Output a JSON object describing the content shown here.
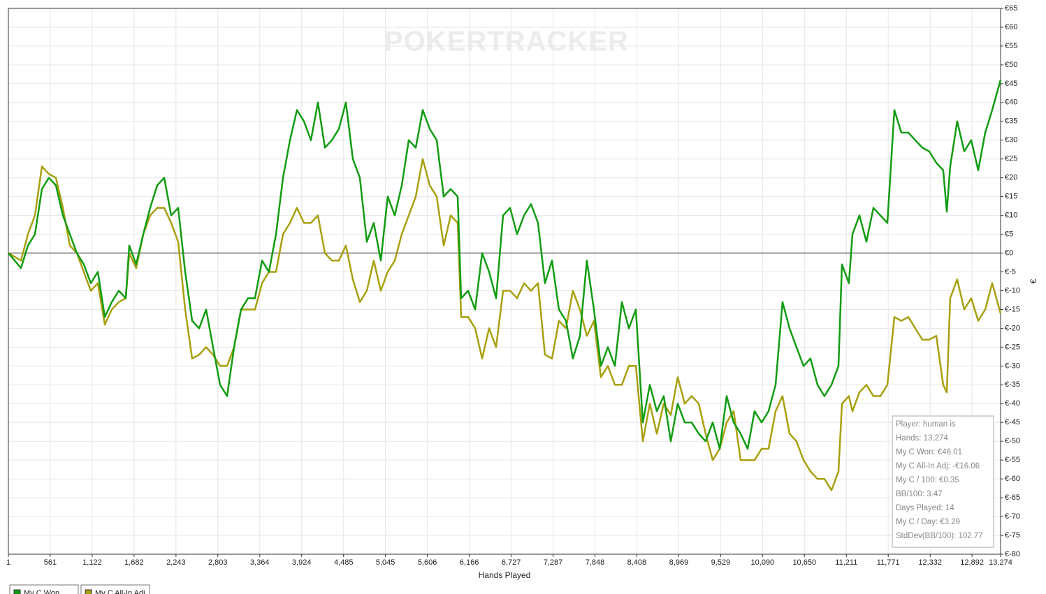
{
  "chart_data": {
    "type": "line",
    "watermark": "POKERTRACKER",
    "x_label": "Hands Played",
    "y_label": "€",
    "grid": true,
    "legend": "bottom-left",
    "xlim": [
      1,
      13274
    ],
    "ylim": [
      -80,
      65
    ],
    "xticks": [
      1,
      {
        "value": 561,
        "label": "561"
      },
      {
        "value": 1122,
        "label": "1,122"
      },
      {
        "value": 1682,
        "label": "1,682"
      },
      {
        "value": 2243,
        "label": "2,243"
      },
      {
        "value": 2803,
        "label": "2,803"
      },
      {
        "value": 3364,
        "label": "3,364"
      },
      {
        "value": 3924,
        "label": "3,924"
      },
      {
        "value": 4485,
        "label": "4,485"
      },
      {
        "value": 5045,
        "label": "5,045"
      },
      {
        "value": 5606,
        "label": "5,606"
      },
      {
        "value": 6166,
        "label": "6,166"
      },
      {
        "value": 6727,
        "label": "6,727"
      },
      {
        "value": 7287,
        "label": "7,287"
      },
      {
        "value": 7848,
        "label": "7,848"
      },
      {
        "value": 8408,
        "label": "8,408"
      },
      {
        "value": 8969,
        "label": "8,969"
      },
      {
        "value": 9529,
        "label": "9,529"
      },
      {
        "value": 10090,
        "label": "10,090"
      },
      {
        "value": 10650,
        "label": "10,650"
      },
      {
        "value": 11211,
        "label": "11,211"
      },
      {
        "value": 11771,
        "label": "11,771"
      },
      {
        "value": 12332,
        "label": "12,332"
      },
      {
        "value": 12892,
        "label": "12,892"
      },
      {
        "value": 13274,
        "label": "13,274"
      }
    ],
    "yticks": [
      {
        "value": 65,
        "label": "€65"
      },
      {
        "value": 60,
        "label": "€60"
      },
      {
        "value": 55,
        "label": "€55"
      },
      {
        "value": 50,
        "label": "€50"
      },
      {
        "value": 45,
        "label": "€45"
      },
      {
        "value": 40,
        "label": "€40"
      },
      {
        "value": 35,
        "label": "€35"
      },
      {
        "value": 30,
        "label": "€30"
      },
      {
        "value": 25,
        "label": "€25"
      },
      {
        "value": 20,
        "label": "€20"
      },
      {
        "value": 15,
        "label": "€15"
      },
      {
        "value": 10,
        "label": "€10"
      },
      {
        "value": 5,
        "label": "€5"
      },
      {
        "value": 0,
        "label": "€0"
      },
      {
        "value": -5,
        "label": "€-5"
      },
      {
        "value": -10,
        "label": "€-10"
      },
      {
        "value": -15,
        "label": "€-15"
      },
      {
        "value": -20,
        "label": "€-20"
      },
      {
        "value": -25,
        "label": "€-25"
      },
      {
        "value": -30,
        "label": "€-30"
      },
      {
        "value": -35,
        "label": "€-35"
      },
      {
        "value": -40,
        "label": "€-40"
      },
      {
        "value": -45,
        "label": "€-45"
      },
      {
        "value": -50,
        "label": "€-50"
      },
      {
        "value": -55,
        "label": "€-55"
      },
      {
        "value": -60,
        "label": "€-60"
      },
      {
        "value": -65,
        "label": "€-65"
      },
      {
        "value": -70,
        "label": "€-70"
      },
      {
        "value": -75,
        "label": "€-75"
      },
      {
        "value": -80,
        "label": "€-80"
      }
    ],
    "x": [
      1,
      169,
      263,
      356,
      450,
      543,
      637,
      730,
      824,
      917,
      1010,
      1104,
      1197,
      1291,
      1384,
      1478,
      1571,
      1618,
      1711,
      1805,
      1898,
      1992,
      2085,
      2179,
      2272,
      2366,
      2459,
      2553,
      2646,
      2739,
      2833,
      2927,
      3020,
      3114,
      3207,
      3300,
      3394,
      3487,
      3581,
      3674,
      3768,
      3861,
      3955,
      4048,
      4142,
      4235,
      4329,
      4422,
      4516,
      4609,
      4703,
      4796,
      4889,
      4983,
      5076,
      5170,
      5263,
      5357,
      5450,
      5544,
      5637,
      5731,
      5824,
      5918,
      6011,
      6058,
      6151,
      6245,
      6338,
      6432,
      6525,
      6619,
      6712,
      6806,
      6899,
      6993,
      7086,
      7179,
      7273,
      7366,
      7460,
      7553,
      7647,
      7740,
      7834,
      7927,
      8021,
      8114,
      8208,
      8301,
      8395,
      8488,
      8582,
      8675,
      8768,
      8862,
      8955,
      9049,
      9142,
      9236,
      9329,
      9423,
      9516,
      9610,
      9703,
      9797,
      9890,
      9983,
      10077,
      10170,
      10264,
      10357,
      10451,
      10544,
      10638,
      10731,
      10825,
      10918,
      11012,
      11105,
      11152,
      11245,
      11292,
      11386,
      11479,
      11573,
      11666,
      11760,
      11853,
      11946,
      12040,
      12133,
      12227,
      12320,
      12414,
      12507,
      12554,
      12600,
      12694,
      12788,
      12881,
      12975,
      13068,
      13162,
      13274
    ],
    "series": [
      {
        "name": "My C Won",
        "color": "#129c12",
        "values": [
          0,
          -4,
          2,
          5,
          17,
          20,
          18,
          10,
          5,
          0,
          -3,
          -8,
          -5,
          -17,
          -13,
          -10,
          -12,
          2,
          -3,
          5,
          12,
          18,
          20,
          10,
          12,
          -5,
          -18,
          -20,
          -15,
          -25,
          -35,
          -38,
          -25,
          -15,
          -12,
          -12,
          -2,
          -5,
          5,
          20,
          30,
          38,
          35,
          30,
          40,
          28,
          30,
          33,
          40,
          25,
          20,
          3,
          8,
          -2,
          15,
          10,
          18,
          30,
          28,
          38,
          33,
          30,
          15,
          17,
          15,
          -12,
          -10,
          -15,
          0,
          -5,
          -12,
          10,
          12,
          5,
          10,
          13,
          8,
          -8,
          -2,
          -15,
          -18,
          -28,
          -22,
          -2,
          -15,
          -30,
          -25,
          -30,
          -13,
          -20,
          -15,
          -45,
          -35,
          -42,
          -38,
          -50,
          -40,
          -45,
          -45,
          -48,
          -50,
          -45,
          -52,
          -38,
          -45,
          -48,
          -52,
          -42,
          -45,
          -42,
          -35,
          -13,
          -20,
          -25,
          -30,
          -28,
          -35,
          -38,
          -35,
          -30,
          -3,
          -8,
          5,
          10,
          3,
          12,
          10,
          8,
          38,
          32,
          32,
          30,
          28,
          27,
          24,
          22,
          11,
          23,
          35,
          27,
          30,
          22,
          32,
          38,
          46.01
        ]
      },
      {
        "name": "My C All-In Adj",
        "color": "#a8a010",
        "values": [
          0,
          -2,
          5,
          10,
          23,
          21,
          20,
          12,
          2,
          0,
          -5,
          -10,
          -8,
          -19,
          -15,
          -13,
          -12,
          0,
          -4,
          5,
          10,
          12,
          12,
          8,
          3,
          -15,
          -28,
          -27,
          -25,
          -27,
          -30,
          -30,
          -25,
          -15,
          -15,
          -15,
          -8,
          -5,
          -5,
          5,
          8,
          12,
          8,
          8,
          10,
          0,
          -2,
          -2,
          2,
          -7,
          -13,
          -10,
          -2,
          -10,
          -5,
          -2,
          5,
          10,
          15,
          25,
          18,
          15,
          2,
          10,
          8,
          -17,
          -17,
          -20,
          -28,
          -20,
          -25,
          -10,
          -10,
          -12,
          -8,
          -10,
          -8,
          -27,
          -28,
          -18,
          -20,
          -10,
          -15,
          -22,
          -18,
          -33,
          -30,
          -35,
          -35,
          -30,
          -30,
          -50,
          -40,
          -48,
          -40,
          -43,
          -33,
          -40,
          -38,
          -40,
          -48,
          -55,
          -52,
          -45,
          -42,
          -55,
          -55,
          -55,
          -52,
          -52,
          -42,
          -38,
          -48,
          -50,
          -55,
          -58,
          -60,
          -60,
          -63,
          -58,
          -40,
          -38,
          -42,
          -37,
          -35,
          -38,
          -38,
          -35,
          -17,
          -18,
          -17,
          -20,
          -23,
          -23,
          -22,
          -35,
          -37,
          -12,
          -7,
          -15,
          -12,
          -18,
          -15,
          -8,
          -16.06
        ]
      }
    ],
    "annotations": [
      "Player: human is",
      "Hands: 13,274",
      "My C Won: €46.01",
      "My C All-In Adj: -€16.06",
      "My C / 100: €0.35",
      "BB/100: 3.47",
      "Days Played: 14",
      "My C / Day: €3.29",
      "StdDev(BB/100): 102.77"
    ]
  }
}
